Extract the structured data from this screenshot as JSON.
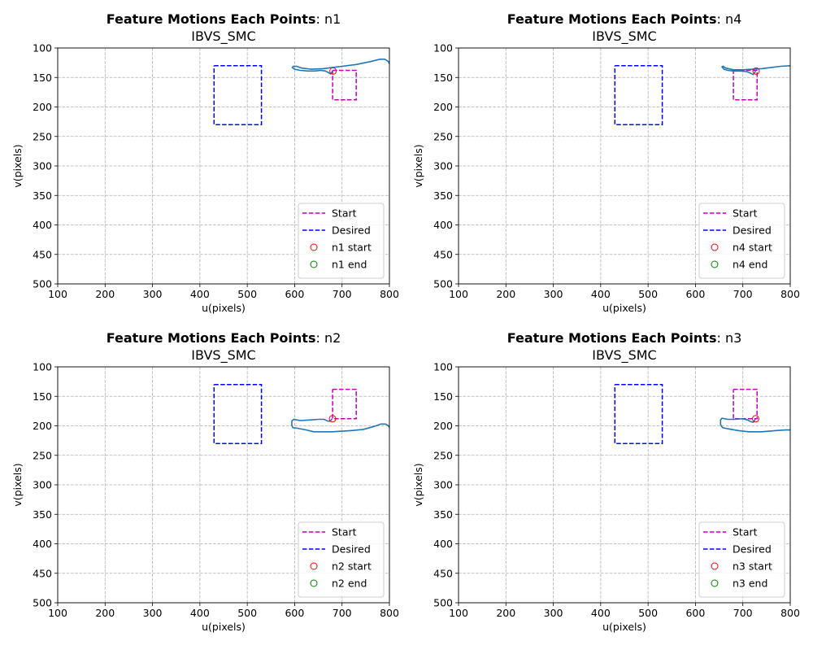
{
  "colors": {
    "start": "#bf00bf",
    "desired": "#0000ff",
    "trajectory": "#1f77b4",
    "start_marker": "#ff0000",
    "end_marker": "#008000",
    "grid": "#b0b0b0"
  },
  "chart_data": [
    {
      "type": "line",
      "title_bold": "Feature Motions Each Points",
      "title_rest": ": n1",
      "subtitle": "IBVS_SMC",
      "xlabel": "u(pixels)",
      "ylabel": "v(pixels)",
      "xlim": [
        100,
        800
      ],
      "ylim": [
        100,
        500
      ],
      "y_inverted": true,
      "grid": true,
      "legend_position": "lower right",
      "xticks": [
        "100",
        "200",
        "300",
        "400",
        "500",
        "600",
        "700",
        "800"
      ],
      "yticks": [
        "100",
        "150",
        "200",
        "250",
        "300",
        "350",
        "400",
        "450",
        "500"
      ],
      "series": [
        {
          "name": "Start",
          "style": "dashed",
          "color": "magenta",
          "points": [
            [
              680,
              138
            ],
            [
              730,
              138
            ],
            [
              730,
              188
            ],
            [
              680,
              188
            ],
            [
              680,
              138
            ]
          ]
        },
        {
          "name": "Desired",
          "style": "dashed",
          "color": "blue",
          "points": [
            [
              430,
              130
            ],
            [
              530,
              130
            ],
            [
              530,
              230
            ],
            [
              430,
              230
            ],
            [
              430,
              130
            ]
          ]
        },
        {
          "name": "trajectory",
          "style": "solid",
          "color": "steelblue",
          "points": [
            [
              680,
              139
            ],
            [
              676,
              144
            ],
            [
              672,
              142
            ],
            [
              665,
              139
            ],
            [
              655,
              138
            ],
            [
              642,
              139
            ],
            [
              628,
              139
            ],
            [
              612,
              138
            ],
            [
              600,
              136
            ],
            [
              595,
              133
            ],
            [
              597,
              131
            ],
            [
              604,
              131
            ],
            [
              615,
              134
            ],
            [
              635,
              136
            ],
            [
              660,
              135
            ],
            [
              680,
              133
            ],
            [
              700,
              131
            ],
            [
              730,
              128
            ],
            [
              760,
              123
            ],
            [
              780,
              119
            ],
            [
              790,
              119
            ],
            [
              798,
              123
            ],
            [
              800,
              127
            ]
          ]
        },
        {
          "name": "n1 start",
          "style": "marker",
          "color": "red",
          "points": [
            [
              681,
              139
            ]
          ]
        },
        {
          "name": "n1 end",
          "style": "marker",
          "color": "green",
          "points": []
        }
      ],
      "legend": [
        "Start",
        "Desired",
        "n1 start",
        "n1 end"
      ]
    },
    {
      "type": "line",
      "title_bold": "Feature Motions Each Points",
      "title_rest": ": n4",
      "subtitle": "IBVS_SMC",
      "xlabel": "u(pixels)",
      "ylabel": "v(pixels)",
      "xlim": [
        100,
        800
      ],
      "ylim": [
        100,
        500
      ],
      "y_inverted": true,
      "grid": true,
      "legend_position": "lower right",
      "xticks": [
        "100",
        "200",
        "300",
        "400",
        "500",
        "600",
        "700",
        "800"
      ],
      "yticks": [
        "100",
        "150",
        "200",
        "250",
        "300",
        "350",
        "400",
        "450",
        "500"
      ],
      "series": [
        {
          "name": "Start",
          "style": "dashed",
          "color": "magenta",
          "points": [
            [
              680,
              138
            ],
            [
              730,
              138
            ],
            [
              730,
              188
            ],
            [
              680,
              188
            ],
            [
              680,
              138
            ]
          ]
        },
        {
          "name": "Desired",
          "style": "dashed",
          "color": "blue",
          "points": [
            [
              430,
              130
            ],
            [
              530,
              130
            ],
            [
              530,
              230
            ],
            [
              430,
              230
            ],
            [
              430,
              130
            ]
          ]
        },
        {
          "name": "trajectory",
          "style": "solid",
          "color": "steelblue",
          "points": [
            [
              727,
              139
            ],
            [
              722,
              145
            ],
            [
              717,
              143
            ],
            [
              708,
              140
            ],
            [
              695,
              139
            ],
            [
              680,
              139
            ],
            [
              668,
              138
            ],
            [
              660,
              136
            ],
            [
              656,
              132
            ],
            [
              658,
              131
            ],
            [
              664,
              134
            ],
            [
              680,
              137
            ],
            [
              700,
              137
            ],
            [
              720,
              136
            ],
            [
              740,
              135
            ],
            [
              760,
              133
            ],
            [
              780,
              131
            ],
            [
              800,
              130
            ]
          ]
        },
        {
          "name": "n4 start",
          "style": "marker",
          "color": "red",
          "points": [
            [
              728,
              139
            ]
          ]
        },
        {
          "name": "n4 end",
          "style": "marker",
          "color": "green",
          "points": []
        }
      ],
      "legend": [
        "Start",
        "Desired",
        "n4 start",
        "n4 end"
      ]
    },
    {
      "type": "line",
      "title_bold": "Feature Motions Each Points",
      "title_rest": ": n2",
      "subtitle": "IBVS_SMC",
      "xlabel": "u(pixels)",
      "ylabel": "v(pixels)",
      "xlim": [
        100,
        800
      ],
      "ylim": [
        100,
        500
      ],
      "y_inverted": true,
      "grid": true,
      "legend_position": "lower right",
      "xticks": [
        "100",
        "200",
        "300",
        "400",
        "500",
        "600",
        "700",
        "800"
      ],
      "yticks": [
        "100",
        "150",
        "200",
        "250",
        "300",
        "350",
        "400",
        "450",
        "500"
      ],
      "series": [
        {
          "name": "Start",
          "style": "dashed",
          "color": "magenta",
          "points": [
            [
              680,
              138
            ],
            [
              730,
              138
            ],
            [
              730,
              188
            ],
            [
              680,
              188
            ],
            [
              680,
              138
            ]
          ]
        },
        {
          "name": "Desired",
          "style": "dashed",
          "color": "blue",
          "points": [
            [
              430,
              130
            ],
            [
              530,
              130
            ],
            [
              530,
              230
            ],
            [
              430,
              230
            ],
            [
              430,
              130
            ]
          ]
        },
        {
          "name": "trajectory",
          "style": "solid",
          "color": "steelblue",
          "points": [
            [
              679,
              188
            ],
            [
              675,
              192
            ],
            [
              670,
              192
            ],
            [
              662,
              189
            ],
            [
              650,
              189
            ],
            [
              632,
              190
            ],
            [
              612,
              191
            ],
            [
              598,
              189
            ],
            [
              594,
              192
            ],
            [
              594,
              199
            ],
            [
              596,
              203
            ],
            [
              605,
              204
            ],
            [
              625,
              207
            ],
            [
              640,
              210
            ],
            [
              680,
              210
            ],
            [
              720,
              208
            ],
            [
              745,
              206
            ],
            [
              768,
              201
            ],
            [
              782,
              197
            ],
            [
              792,
              197
            ],
            [
              798,
              200
            ],
            [
              800,
              203
            ]
          ]
        },
        {
          "name": "n2 start",
          "style": "marker",
          "color": "red",
          "points": [
            [
              680,
              188
            ]
          ]
        },
        {
          "name": "n2 end",
          "style": "marker",
          "color": "green",
          "points": []
        }
      ],
      "legend": [
        "Start",
        "Desired",
        "n2 start",
        "n2 end"
      ]
    },
    {
      "type": "line",
      "title_bold": "Feature Motions Each Points",
      "title_rest": ": n3",
      "subtitle": "IBVS_SMC",
      "xlabel": "u(pixels)",
      "ylabel": "v(pixels)",
      "xlim": [
        100,
        800
      ],
      "ylim": [
        100,
        500
      ],
      "y_inverted": true,
      "grid": true,
      "legend_position": "lower right",
      "xticks": [
        "100",
        "200",
        "300",
        "400",
        "500",
        "600",
        "700",
        "800"
      ],
      "yticks": [
        "100",
        "150",
        "200",
        "250",
        "300",
        "350",
        "400",
        "450",
        "500"
      ],
      "series": [
        {
          "name": "Start",
          "style": "dashed",
          "color": "magenta",
          "points": [
            [
              680,
              138
            ],
            [
              730,
              138
            ],
            [
              730,
              188
            ],
            [
              680,
              188
            ],
            [
              680,
              138
            ]
          ]
        },
        {
          "name": "Desired",
          "style": "dashed",
          "color": "blue",
          "points": [
            [
              430,
              130
            ],
            [
              530,
              130
            ],
            [
              530,
              230
            ],
            [
              430,
              230
            ],
            [
              430,
              130
            ]
          ]
        },
        {
          "name": "trajectory",
          "style": "solid",
          "color": "steelblue",
          "points": [
            [
              727,
              188
            ],
            [
              722,
              194
            ],
            [
              717,
              193
            ],
            [
              710,
              190
            ],
            [
              700,
              188
            ],
            [
              682,
              189
            ],
            [
              668,
              189
            ],
            [
              656,
              187
            ],
            [
              653,
              190
            ],
            [
              653,
              198
            ],
            [
              657,
              203
            ],
            [
              668,
              205
            ],
            [
              690,
              208
            ],
            [
              712,
              210
            ],
            [
              740,
              210
            ],
            [
              770,
              208
            ],
            [
              790,
              207
            ],
            [
              800,
              207
            ]
          ]
        },
        {
          "name": "n3 start",
          "style": "marker",
          "color": "red",
          "points": [
            [
              727,
              188
            ]
          ]
        },
        {
          "name": "n3 end",
          "style": "marker",
          "color": "green",
          "points": []
        }
      ],
      "legend": [
        "Start",
        "Desired",
        "n3 start",
        "n3 end"
      ]
    }
  ]
}
